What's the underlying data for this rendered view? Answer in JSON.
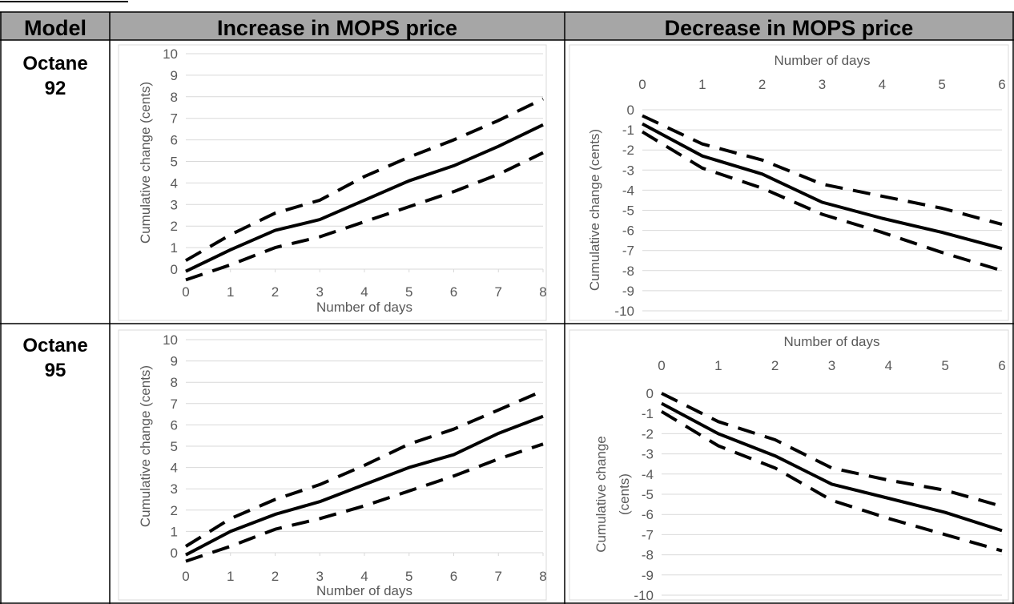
{
  "table": {
    "headers": [
      "Model",
      "Increase in MOPS price",
      "Decrease in MOPS price"
    ],
    "rows": [
      {
        "label_line1": "Octane",
        "label_line2": "92"
      },
      {
        "label_line1": "Octane",
        "label_line2": "95"
      }
    ]
  },
  "chart_data": [
    {
      "type": "line",
      "panel": "Octane 92 - Increase in MOPS price",
      "xlabel": "Number of days",
      "ylabel": "Cumulative change (cents)",
      "xlim": [
        0,
        8
      ],
      "ylim": [
        0,
        10
      ],
      "x_ticks": [
        "0",
        "1",
        "2",
        "3",
        "4",
        "5",
        "6",
        "7",
        "8"
      ],
      "y_ticks": [
        "10",
        "9",
        "8",
        "7",
        "6",
        "5",
        "4",
        "3",
        "2",
        "1",
        "0"
      ],
      "x": [
        0,
        1,
        2,
        3,
        4,
        5,
        6,
        7,
        8
      ],
      "series": [
        {
          "style": "dashed",
          "values": [
            0.4,
            1.6,
            2.6,
            3.2,
            4.3,
            5.2,
            6.0,
            6.9,
            7.9
          ]
        },
        {
          "style": "solid",
          "values": [
            -0.1,
            0.9,
            1.8,
            2.3,
            3.2,
            4.1,
            4.8,
            5.7,
            6.7
          ]
        },
        {
          "style": "dashed",
          "values": [
            -0.5,
            0.2,
            1.0,
            1.5,
            2.2,
            2.9,
            3.6,
            4.4,
            5.4
          ]
        }
      ],
      "grid": true,
      "x_axis_position": "bottom"
    },
    {
      "type": "line",
      "panel": "Octane 92 - Decrease in MOPS price",
      "xlabel": "Number of days",
      "ylabel": "Cumulative change (cents)",
      "xlim": [
        0,
        6
      ],
      "ylim": [
        -10,
        0
      ],
      "x_ticks": [
        "0",
        "1",
        "2",
        "3",
        "4",
        "5",
        "6"
      ],
      "y_ticks": [
        "0",
        "-1",
        "-2",
        "-3",
        "-4",
        "-5",
        "-6",
        "-7",
        "-8",
        "-9",
        "-10"
      ],
      "x": [
        0,
        1,
        2,
        3,
        4,
        5,
        6
      ],
      "series": [
        {
          "style": "dashed",
          "values": [
            -0.3,
            -1.7,
            -2.5,
            -3.7,
            -4.3,
            -4.9,
            -5.7
          ]
        },
        {
          "style": "solid",
          "values": [
            -0.7,
            -2.3,
            -3.2,
            -4.6,
            -5.4,
            -6.1,
            -6.9
          ]
        },
        {
          "style": "dashed",
          "values": [
            -1.1,
            -2.9,
            -3.9,
            -5.2,
            -6.1,
            -7.1,
            -8.0
          ]
        }
      ],
      "grid": true,
      "x_axis_position": "top"
    },
    {
      "type": "line",
      "panel": "Octane 95 - Increase in MOPS price",
      "xlabel": "Number of days",
      "ylabel": "Cumulative change (cents)",
      "xlim": [
        0,
        8
      ],
      "ylim": [
        0,
        10
      ],
      "x_ticks": [
        "0",
        "1",
        "2",
        "3",
        "4",
        "5",
        "6",
        "7",
        "8"
      ],
      "y_ticks": [
        "10",
        "9",
        "8",
        "7",
        "6",
        "5",
        "4",
        "3",
        "2",
        "1",
        "0"
      ],
      "x": [
        0,
        1,
        2,
        3,
        4,
        5,
        6,
        7,
        8
      ],
      "series": [
        {
          "style": "dashed",
          "values": [
            0.3,
            1.6,
            2.5,
            3.2,
            4.1,
            5.1,
            5.8,
            6.7,
            7.6
          ]
        },
        {
          "style": "solid",
          "values": [
            -0.1,
            1.0,
            1.8,
            2.4,
            3.2,
            4.0,
            4.6,
            5.6,
            6.4
          ]
        },
        {
          "style": "dashed",
          "values": [
            -0.4,
            0.3,
            1.1,
            1.6,
            2.2,
            2.9,
            3.6,
            4.4,
            5.1
          ]
        }
      ],
      "grid": true,
      "x_axis_position": "bottom"
    },
    {
      "type": "line",
      "panel": "Octane 95 - Decrease in MOPS price",
      "xlabel": "Number of days",
      "ylabel_line1": "Cumulative change",
      "ylabel_line2": "(cents)",
      "xlim": [
        0,
        6
      ],
      "ylim": [
        -10,
        0
      ],
      "x_ticks": [
        "0",
        "1",
        "2",
        "3",
        "4",
        "5",
        "6"
      ],
      "y_ticks": [
        "0",
        "-1",
        "-2",
        "-3",
        "-4",
        "-5",
        "-6",
        "-7",
        "-8",
        "-9",
        "-10"
      ],
      "x": [
        0,
        1,
        2,
        3,
        4,
        5,
        6
      ],
      "series": [
        {
          "style": "dashed",
          "values": [
            0.0,
            -1.4,
            -2.3,
            -3.7,
            -4.3,
            -4.8,
            -5.6
          ]
        },
        {
          "style": "solid",
          "values": [
            -0.5,
            -2.0,
            -3.1,
            -4.5,
            -5.2,
            -5.9,
            -6.8
          ]
        },
        {
          "style": "dashed",
          "values": [
            -0.9,
            -2.6,
            -3.7,
            -5.3,
            -6.2,
            -7.0,
            -7.8
          ]
        }
      ],
      "grid": true,
      "x_axis_position": "top"
    }
  ]
}
